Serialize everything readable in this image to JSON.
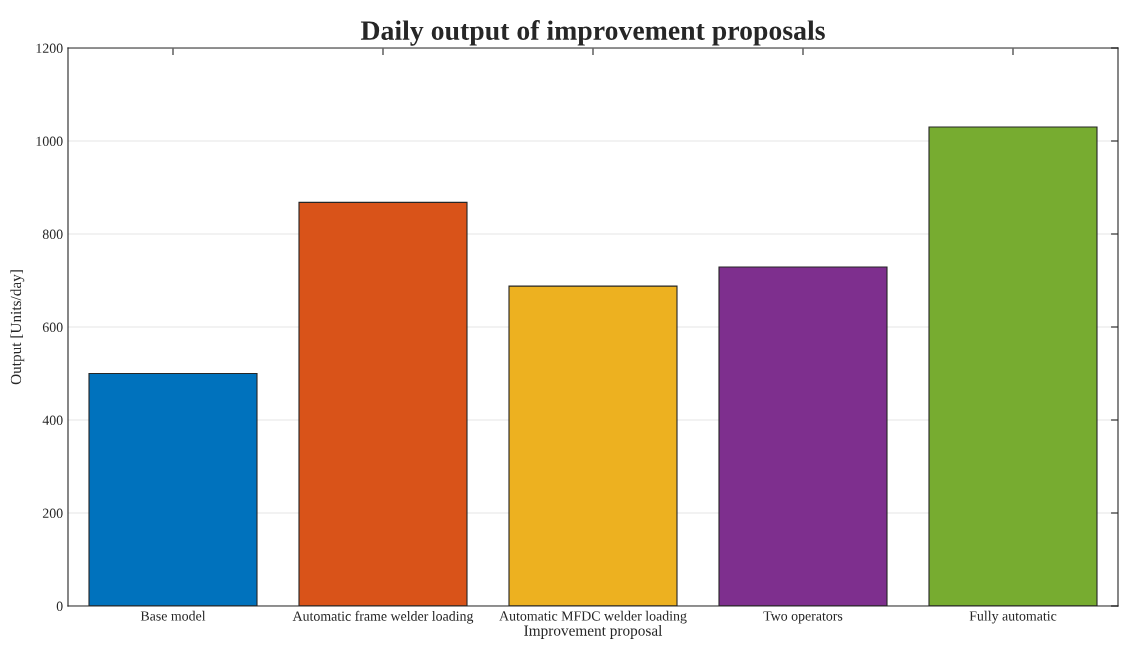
{
  "chart_data": {
    "type": "bar",
    "title": "Daily output of improvement proposals",
    "xlabel": "Improvement proposal",
    "ylabel": "Output [Units/day]",
    "categories": [
      "Base model",
      "Automatic frame welder loading",
      "Automatic MFDC welder loading",
      "Two operators",
      "Fully automatic"
    ],
    "values": [
      500,
      868,
      688,
      729,
      1030
    ],
    "colors": [
      "#0072bd",
      "#d95319",
      "#edb120",
      "#7e2f8e",
      "#77ac30"
    ],
    "ylim": [
      0,
      1200
    ],
    "yticks": [
      0,
      200,
      400,
      600,
      800,
      1000,
      1200
    ],
    "grid": "y"
  }
}
